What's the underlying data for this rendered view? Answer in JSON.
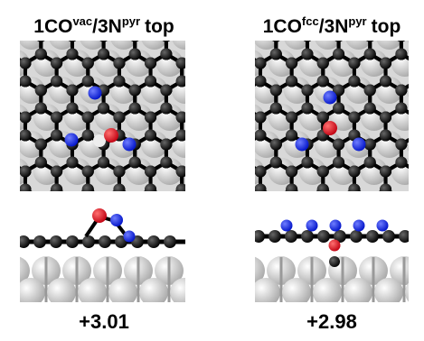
{
  "panels": [
    {
      "title": {
        "base": "1CO",
        "sup1": "vac",
        "mid": "/3N",
        "sup2": "pyr",
        "end": "top"
      },
      "energy": "+3.01"
    },
    {
      "title": {
        "base": "1CO",
        "sup1": "fcc",
        "mid": "/3N",
        "sup2": "pyr",
        "end": "top"
      },
      "energy": "+2.98"
    }
  ]
}
